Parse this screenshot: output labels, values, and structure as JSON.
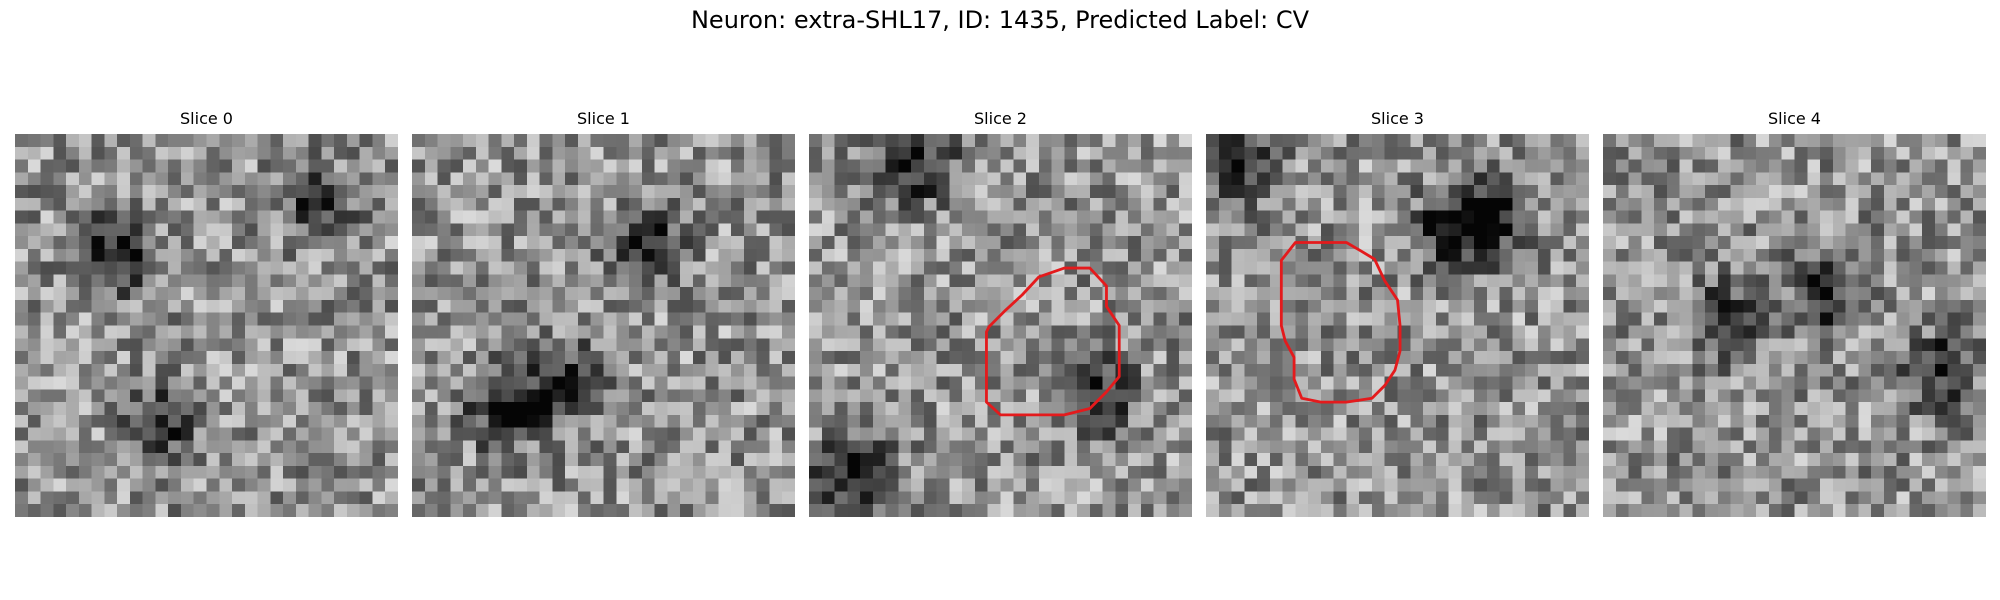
{
  "figure": {
    "title": "Neuron: extra-SHL17, ID: 1435, Predicted Label: CV"
  },
  "panels": [
    {
      "title": "Slice 0",
      "contour": null,
      "seed": 11,
      "dark_spots": [
        [
          7,
          9,
          0.55
        ],
        [
          11,
          22,
          0.45
        ],
        [
          23,
          5,
          0.4
        ]
      ]
    },
    {
      "title": "Slice 1",
      "contour": null,
      "seed": 23,
      "dark_spots": [
        [
          7,
          21,
          0.6
        ],
        [
          12,
          19,
          0.45
        ],
        [
          18,
          8,
          0.4
        ]
      ]
    },
    {
      "title": "Slice 2",
      "contour": [
        [
          14.1,
          15.1
        ],
        [
          15.4,
          13.8
        ],
        [
          16.7,
          12.6
        ],
        [
          18.0,
          11.2
        ],
        [
          20.0,
          10.5
        ],
        [
          22.0,
          10.5
        ],
        [
          23.3,
          11.9
        ],
        [
          23.3,
          13.5
        ],
        [
          24.3,
          15.0
        ],
        [
          24.3,
          19.0
        ],
        [
          23.3,
          20.2
        ],
        [
          22.0,
          21.5
        ],
        [
          20.0,
          22.0
        ],
        [
          18.0,
          22.0
        ],
        [
          15.0,
          22.0
        ],
        [
          13.9,
          21.0
        ],
        [
          13.9,
          19.0
        ],
        [
          13.9,
          17.0
        ],
        [
          13.9,
          15.5
        ]
      ],
      "seed": 37,
      "dark_spots": [
        [
          8,
          2,
          0.5
        ],
        [
          3,
          26,
          0.55
        ],
        [
          22,
          20,
          0.5
        ]
      ]
    },
    {
      "title": "Slice 3",
      "contour": [
        [
          5.9,
          9.9
        ],
        [
          7.0,
          8.5
        ],
        [
          9.0,
          8.5
        ],
        [
          11.0,
          8.5
        ],
        [
          12.2,
          9.2
        ],
        [
          13.2,
          9.8
        ],
        [
          14.0,
          11.5
        ],
        [
          15.0,
          13.0
        ],
        [
          15.2,
          15.0
        ],
        [
          15.2,
          17.0
        ],
        [
          14.8,
          18.5
        ],
        [
          14.0,
          19.7
        ],
        [
          13.0,
          20.7
        ],
        [
          11.0,
          21.0
        ],
        [
          9.0,
          21.0
        ],
        [
          7.5,
          20.7
        ],
        [
          6.9,
          19.2
        ],
        [
          6.9,
          17.5
        ],
        [
          6.2,
          16.2
        ],
        [
          5.9,
          15.0
        ],
        [
          5.9,
          13.0
        ],
        [
          5.9,
          11.5
        ]
      ],
      "seed": 53,
      "dark_spots": [
        [
          19,
          7,
          0.55
        ],
        [
          22,
          6,
          0.5
        ],
        [
          2,
          2,
          0.4
        ]
      ]
    },
    {
      "title": "Slice 4",
      "contour": null,
      "seed": 71,
      "dark_spots": [
        [
          17,
          12,
          0.45
        ],
        [
          9,
          14,
          0.4
        ],
        [
          26,
          18,
          0.45
        ]
      ]
    }
  ]
}
